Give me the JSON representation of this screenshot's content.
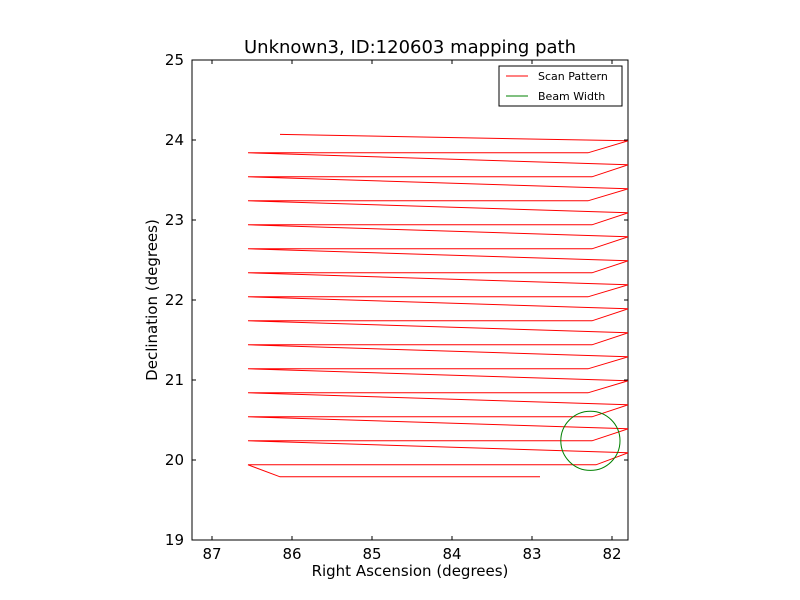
{
  "chart_data": {
    "type": "line",
    "title": "Unknown3, ID:120603 mapping path",
    "xlabel": "Right Ascension (degrees)",
    "ylabel": "Declination (degrees)",
    "xlim": [
      87.25,
      81.8
    ],
    "ylim": [
      19,
      25
    ],
    "x_inverted": true,
    "xticks": [
      87,
      86,
      85,
      84,
      83,
      82
    ],
    "yticks": [
      19,
      20,
      21,
      22,
      23,
      24,
      25
    ],
    "grid": false,
    "legend_position": "top-right",
    "series": [
      {
        "name": "Scan Pattern",
        "color": "#ff0000",
        "x": [
          82.9,
          86.15,
          86.55,
          82.2,
          81.8,
          86.55,
          86.55,
          82.25,
          81.8,
          86.55,
          86.55,
          82.25,
          81.8,
          86.55,
          86.55,
          82.3,
          81.8,
          86.55,
          86.55,
          82.3,
          81.8,
          86.55,
          86.55,
          82.25,
          81.8,
          86.55,
          86.55,
          82.25,
          81.8,
          86.55,
          86.55,
          82.3,
          81.8,
          86.55,
          86.55,
          82.25,
          81.8,
          86.55,
          86.55,
          82.25,
          81.8,
          86.55,
          86.55,
          82.25,
          81.8,
          86.55,
          86.55,
          82.3,
          81.8,
          86.55,
          86.55,
          82.25,
          81.8,
          86.55,
          86.55,
          82.3,
          81.8,
          86.15
        ],
        "y": [
          19.79,
          19.79,
          19.94,
          19.94,
          20.09,
          20.24,
          20.24,
          20.24,
          20.39,
          20.54,
          20.54,
          20.54,
          20.69,
          20.84,
          20.84,
          20.84,
          20.99,
          21.14,
          21.14,
          21.14,
          21.29,
          21.44,
          21.44,
          21.44,
          21.59,
          21.74,
          21.74,
          21.74,
          21.89,
          22.04,
          22.04,
          22.04,
          22.19,
          22.34,
          22.34,
          22.34,
          22.49,
          22.64,
          22.64,
          22.64,
          22.79,
          22.94,
          22.94,
          22.94,
          23.09,
          23.24,
          23.24,
          23.24,
          23.39,
          23.54,
          23.54,
          23.54,
          23.69,
          23.84,
          23.84,
          23.84,
          23.99,
          24.07
        ]
      },
      {
        "name": "Beam Width",
        "color": "#008000",
        "shape": "circle",
        "center": [
          82.27,
          20.24
        ],
        "radius_deg": 0.37
      }
    ]
  }
}
